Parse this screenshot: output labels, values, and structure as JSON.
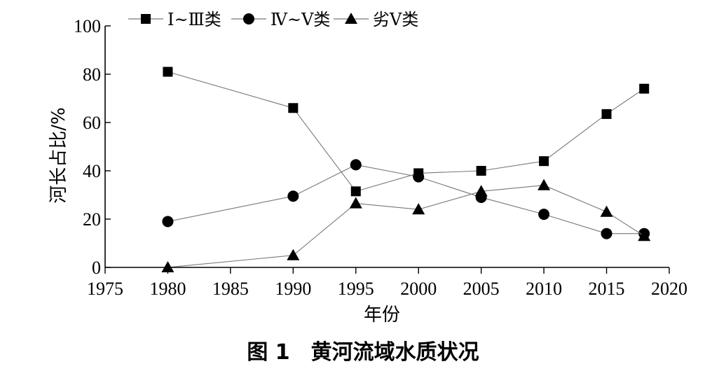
{
  "chart_data": {
    "type": "line",
    "title": "",
    "caption": "图 1　黄河流域水质状况",
    "xlabel": "年份",
    "ylabel": "河长占比/%",
    "xlim": [
      1975,
      2020
    ],
    "ylim": [
      0,
      100
    ],
    "xticks": [
      1975,
      1980,
      1985,
      1990,
      1995,
      2000,
      2005,
      2010,
      2015,
      2020
    ],
    "yticks": [
      0,
      20,
      40,
      60,
      80,
      100
    ],
    "grid": false,
    "legend_position": "top",
    "series": [
      {
        "name": "Ⅰ~Ⅲ类",
        "marker": "square",
        "x": [
          1980,
          1990,
          1995,
          2000,
          2005,
          2010,
          2015,
          2018
        ],
        "values": [
          81,
          66,
          31.5,
          39,
          40,
          44,
          63.5,
          74
        ]
      },
      {
        "name": "Ⅳ~Ⅴ类",
        "marker": "circle",
        "x": [
          1980,
          1990,
          1995,
          2000,
          2005,
          2010,
          2015,
          2018
        ],
        "values": [
          19,
          29.5,
          42.5,
          37.5,
          29,
          22,
          14,
          14
        ]
      },
      {
        "name": "劣Ⅴ类",
        "marker": "triangle",
        "x": [
          1980,
          1990,
          1995,
          2000,
          2005,
          2010,
          2015,
          2018
        ],
        "values": [
          0,
          5,
          26.5,
          24,
          31.5,
          34,
          23,
          13
        ]
      }
    ]
  }
}
